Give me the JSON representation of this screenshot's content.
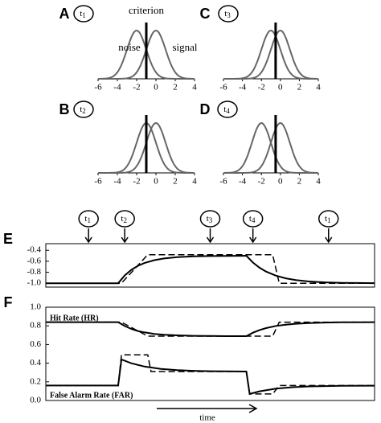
{
  "chart_data": [
    {
      "type": "density",
      "panel": "A",
      "marker": {
        "letter": "t",
        "sub": "1"
      },
      "criterion_label": "criterion",
      "series": [
        {
          "name": "noise",
          "mean": -2,
          "sd": 1,
          "color": "#666666"
        },
        {
          "name": "signal",
          "mean": 0,
          "sd": 1,
          "color": "#666666"
        }
      ],
      "criterion": -1,
      "xlim": [
        -6,
        4
      ],
      "xticks": [
        -6,
        -4,
        -2,
        0,
        2,
        4
      ]
    },
    {
      "type": "density",
      "panel": "B",
      "marker": {
        "letter": "t",
        "sub": "2"
      },
      "series": [
        {
          "mean": -1,
          "sd": 1,
          "color": "#666666"
        },
        {
          "mean": 0,
          "sd": 1,
          "color": "#666666"
        }
      ],
      "criterion": -1,
      "xlim": [
        -6,
        4
      ],
      "xticks": [
        -6,
        -4,
        -2,
        0,
        2,
        4
      ]
    },
    {
      "type": "density",
      "panel": "C",
      "marker": {
        "letter": "t",
        "sub": "3"
      },
      "series": [
        {
          "mean": -1,
          "sd": 1,
          "color": "#666666"
        },
        {
          "mean": 0,
          "sd": 1,
          "color": "#666666"
        }
      ],
      "criterion": -0.5,
      "xlim": [
        -6,
        4
      ],
      "xticks": [
        -6,
        -4,
        -2,
        0,
        2,
        4
      ]
    },
    {
      "type": "density",
      "panel": "D",
      "marker": {
        "letter": "t",
        "sub": "4"
      },
      "series": [
        {
          "mean": -2,
          "sd": 1,
          "color": "#666666"
        },
        {
          "mean": 0,
          "sd": 1,
          "color": "#666666"
        }
      ],
      "criterion": -0.5,
      "xlim": [
        -6,
        4
      ],
      "xticks": [
        -6,
        -4,
        -2,
        0,
        2,
        4
      ]
    },
    {
      "type": "line",
      "panel": "E",
      "xlim": [
        0,
        100
      ],
      "ylim": [
        -1.07,
        -0.28
      ],
      "yticks": [
        {
          "value": -1,
          "label": "-1.0"
        },
        -0.8,
        -0.6,
        -0.4
      ],
      "time_markers": [
        {
          "letter": "t",
          "sub": "1",
          "x": 13
        },
        {
          "letter": "t",
          "sub": "2",
          "x": 24
        },
        {
          "letter": "t",
          "sub": "3",
          "x": 50
        },
        {
          "letter": "t",
          "sub": "4",
          "x": 63
        },
        {
          "letter": "t",
          "sub": "1",
          "x": 86
        }
      ],
      "series": [
        {
          "color": "#000000",
          "dashed": false,
          "x": [
            0,
            22,
            24,
            26,
            28,
            30,
            33,
            36,
            40,
            45,
            50,
            55,
            61,
            63,
            65,
            67,
            70,
            73,
            76,
            80,
            85,
            90,
            95,
            100
          ],
          "values": [
            -1,
            -1,
            -0.858,
            -0.757,
            -0.684,
            -0.632,
            -0.58,
            -0.549,
            -0.525,
            -0.511,
            -0.505,
            -0.502,
            -0.5,
            -0.624,
            -0.717,
            -0.788,
            -0.862,
            -0.91,
            -0.941,
            -0.967,
            -0.984,
            -0.992,
            -0.996,
            -0.998
          ]
        },
        {
          "color": "#000000",
          "dashed": true,
          "x": [
            0,
            23,
            31,
            69,
            71,
            100
          ],
          "values": [
            -1,
            -1,
            -0.48,
            -0.48,
            -1,
            -1
          ]
        }
      ]
    },
    {
      "type": "line",
      "panel": "F",
      "xlim": [
        0,
        100
      ],
      "ylim": [
        0,
        1
      ],
      "xlabel": "time",
      "yticks": [
        {
          "value": 0,
          "label": "0.0"
        },
        0.2,
        0.4,
        0.6,
        0.8,
        {
          "value": 1,
          "label": "1.0"
        }
      ],
      "annotations": [
        "Hit Rate (HR)",
        "False Alarm Rate (FAR)"
      ],
      "series": [
        {
          "color": "#000000",
          "dashed": false,
          "x": [
            0,
            22,
            24,
            26,
            28,
            30,
            33,
            36,
            40,
            45,
            50,
            55,
            61,
            63,
            65,
            67,
            70,
            73,
            76,
            80,
            85,
            90,
            95,
            100
          ],
          "values": [
            0.84,
            0.84,
            0.798,
            0.767,
            0.745,
            0.73,
            0.714,
            0.705,
            0.698,
            0.693,
            0.691,
            0.69,
            0.69,
            0.727,
            0.755,
            0.776,
            0.799,
            0.813,
            0.822,
            0.83,
            0.835,
            0.838,
            0.839,
            0.84
          ]
        },
        {
          "color": "#000000",
          "dashed": true,
          "x": [
            0,
            23,
            31,
            69,
            71,
            100
          ],
          "values": [
            0.84,
            0.84,
            0.69,
            0.69,
            0.84,
            0.84
          ]
        },
        {
          "color": "#000000",
          "dashed": false,
          "x": [
            0,
            22,
            23,
            26,
            30,
            35,
            40,
            45,
            50,
            55,
            61,
            62,
            65,
            70,
            75,
            80,
            90,
            100
          ],
          "values": [
            0.16,
            0.16,
            0.44,
            0.399,
            0.364,
            0.339,
            0.325,
            0.318,
            0.314,
            0.312,
            0.31,
            0.07,
            0.098,
            0.127,
            0.142,
            0.151,
            0.157,
            0.159
          ]
        },
        {
          "color": "#000000",
          "dashed": true,
          "x": [
            0,
            22,
            23,
            31,
            32,
            61,
            62,
            69,
            71,
            100
          ],
          "values": [
            0.16,
            0.16,
            0.49,
            0.49,
            0.31,
            0.31,
            0.07,
            0.07,
            0.16,
            0.16
          ]
        }
      ]
    }
  ]
}
